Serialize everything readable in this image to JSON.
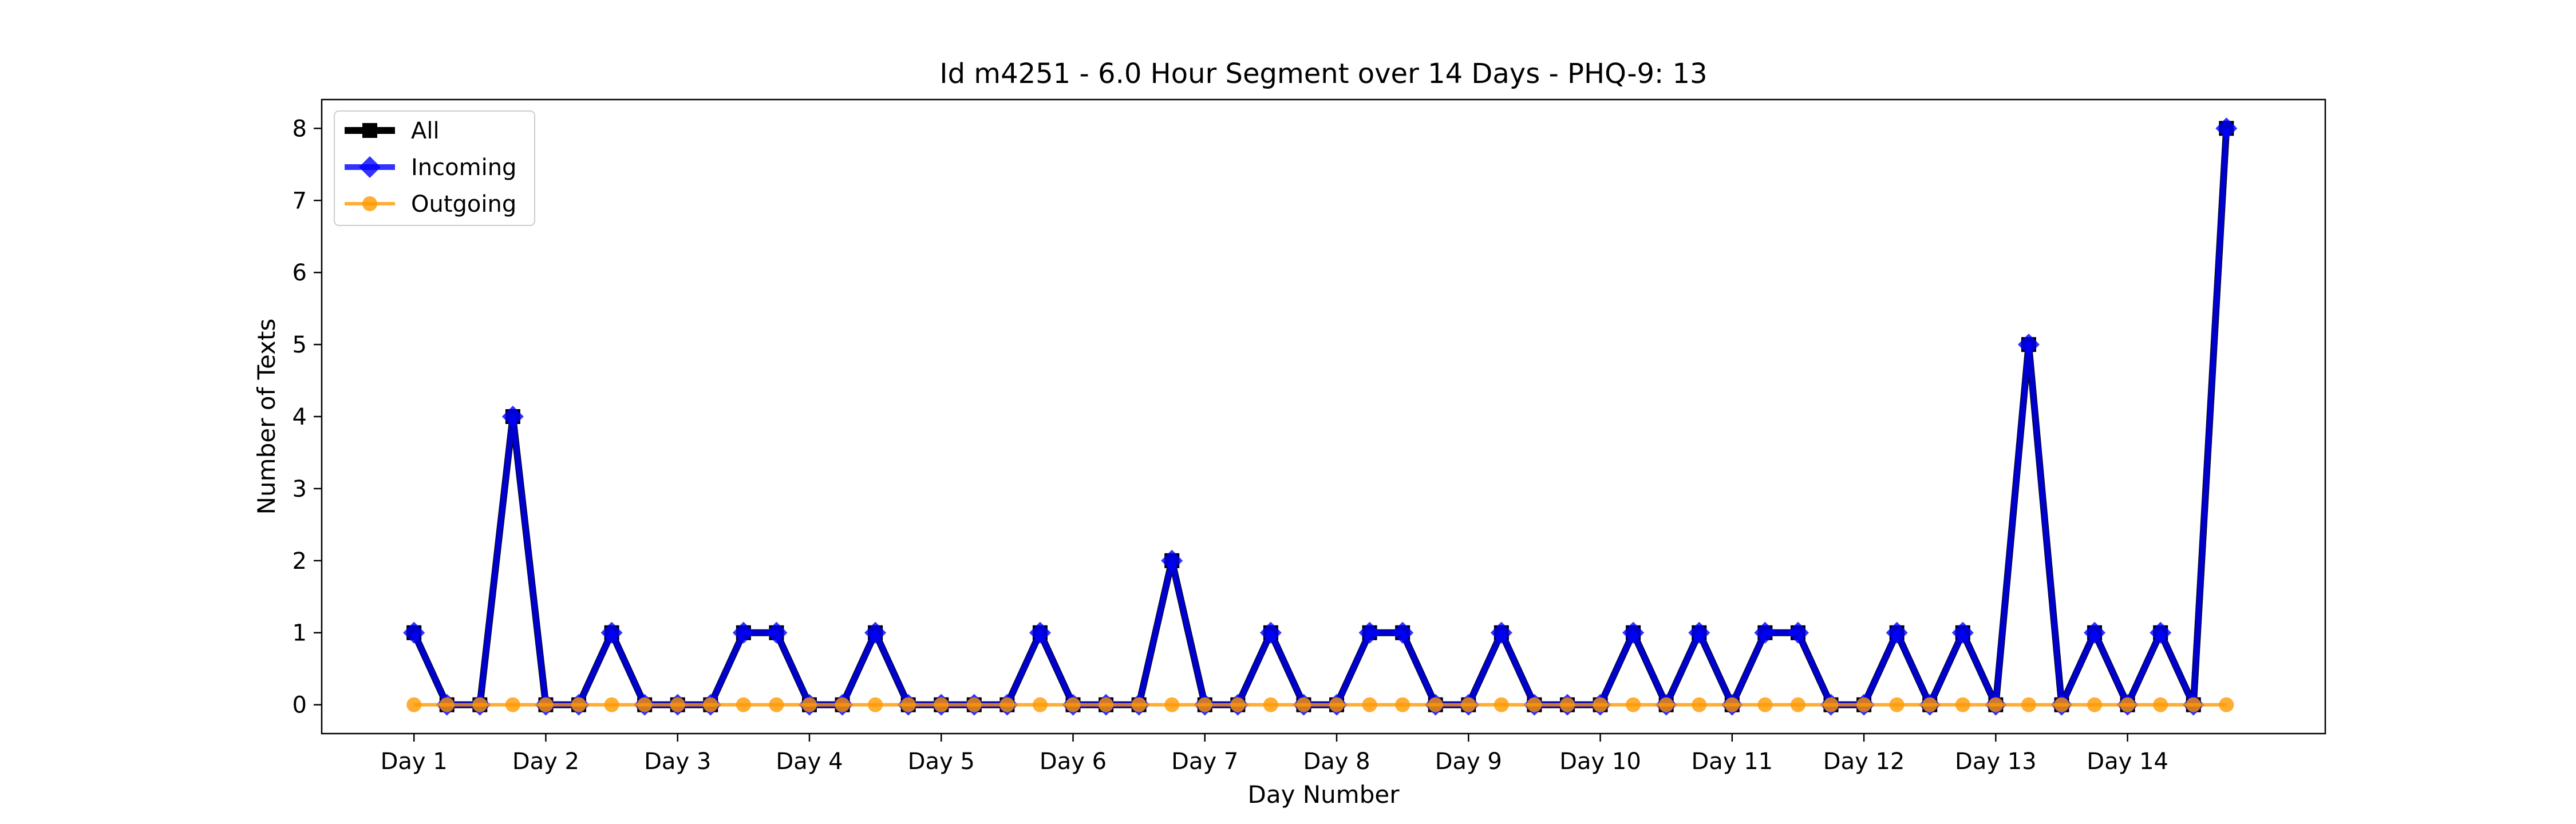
{
  "chart_data": {
    "type": "line",
    "title": "Id m4251 - 6.0 Hour Segment over 14 Days - PHQ-9: 13",
    "xlabel": "Day Number",
    "ylabel": "Number of Texts",
    "x_ticks": [
      "Day 1",
      "Day 2",
      "Day 3",
      "Day 4",
      "Day 5",
      "Day 6",
      "Day 7",
      "Day 8",
      "Day 9",
      "Day 10",
      "Day 11",
      "Day 12",
      "Day 13",
      "Day 14"
    ],
    "y_ticks": [
      0,
      1,
      2,
      3,
      4,
      5,
      6,
      7,
      8
    ],
    "xlim": [
      -0.7,
      14.5
    ],
    "ylim": [
      -0.4,
      8.4
    ],
    "x_step": 0.25,
    "legend_position": "upper-left",
    "grid": false,
    "series": [
      {
        "name": "All",
        "color": "#000000",
        "marker": "square",
        "values": [
          1,
          0,
          0,
          4,
          0,
          0,
          1,
          0,
          0,
          0,
          1,
          1,
          0,
          0,
          1,
          0,
          0,
          0,
          0,
          1,
          0,
          0,
          0,
          2,
          0,
          0,
          1,
          0,
          0,
          1,
          1,
          0,
          0,
          1,
          0,
          0,
          0,
          1,
          0,
          1,
          0,
          1,
          1,
          0,
          0,
          1,
          0,
          1,
          0,
          5,
          0,
          1,
          0,
          1,
          0,
          8
        ]
      },
      {
        "name": "Incoming",
        "color": "#0000ff",
        "marker": "diamond",
        "values": [
          1,
          0,
          0,
          4,
          0,
          0,
          1,
          0,
          0,
          0,
          1,
          1,
          0,
          0,
          1,
          0,
          0,
          0,
          0,
          1,
          0,
          0,
          0,
          2,
          0,
          0,
          1,
          0,
          0,
          1,
          1,
          0,
          0,
          1,
          0,
          0,
          0,
          1,
          0,
          1,
          0,
          1,
          1,
          0,
          0,
          1,
          0,
          1,
          0,
          5,
          0,
          1,
          0,
          1,
          0,
          8
        ]
      },
      {
        "name": "Outgoing",
        "color": "#ff9900",
        "marker": "circle",
        "values": [
          0,
          0,
          0,
          0,
          0,
          0,
          0,
          0,
          0,
          0,
          0,
          0,
          0,
          0,
          0,
          0,
          0,
          0,
          0,
          0,
          0,
          0,
          0,
          0,
          0,
          0,
          0,
          0,
          0,
          0,
          0,
          0,
          0,
          0,
          0,
          0,
          0,
          0,
          0,
          0,
          0,
          0,
          0,
          0,
          0,
          0,
          0,
          0,
          0,
          0,
          0,
          0,
          0,
          0,
          0,
          0
        ]
      }
    ]
  }
}
